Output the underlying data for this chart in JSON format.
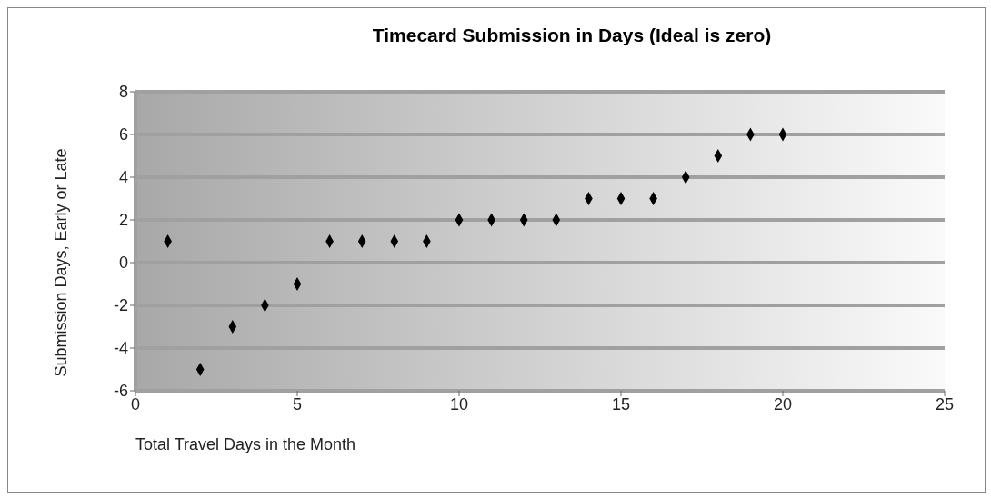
{
  "chart_data": {
    "type": "scatter",
    "title": "Timecard Submission in Days (Ideal is zero)",
    "xlabel": "Total Travel Days in the Month",
    "ylabel": "Submission Days, Early or Late",
    "x": [
      1,
      2,
      3,
      4,
      5,
      6,
      7,
      8,
      9,
      10,
      11,
      12,
      13,
      14,
      15,
      16,
      17,
      18,
      19,
      20
    ],
    "series": [
      {
        "color": "#000000",
        "values": [
          1,
          -5,
          -3,
          -2,
          -1,
          1,
          1,
          1,
          1,
          2,
          2,
          2,
          2,
          3,
          3,
          3,
          4,
          5,
          6,
          6
        ]
      }
    ],
    "xlim": [
      0,
      25
    ],
    "xticks": [
      0,
      5,
      10,
      15,
      20,
      25
    ],
    "ylim": [
      -6,
      8
    ],
    "yticks": [
      -6,
      -4,
      -2,
      0,
      2,
      4,
      6,
      8
    ],
    "grid": "y",
    "marker": "diamond"
  }
}
